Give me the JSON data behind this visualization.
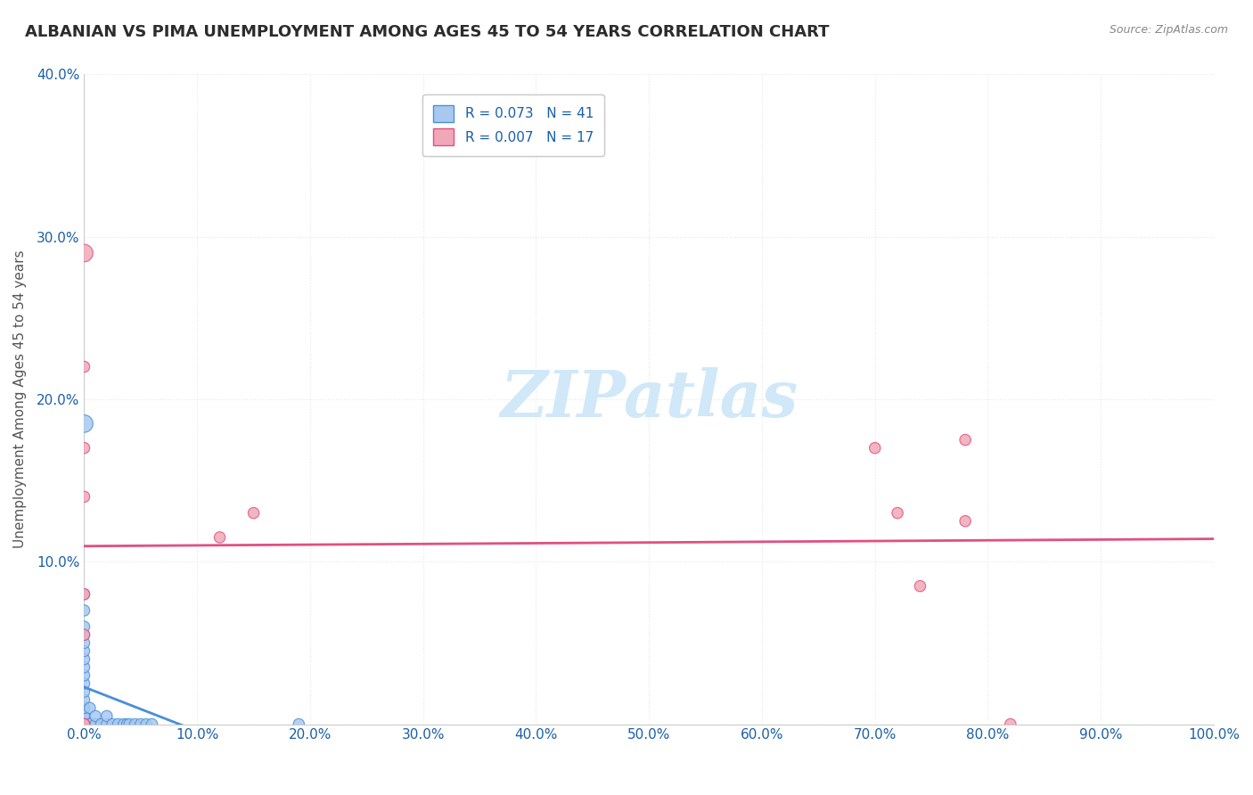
{
  "title": "ALBANIAN VS PIMA UNEMPLOYMENT AMONG AGES 45 TO 54 YEARS CORRELATION CHART",
  "source": "Source: ZipAtlas.com",
  "xlabel": "",
  "ylabel": "Unemployment Among Ages 45 to 54 years",
  "xlim": [
    0,
    1.0
  ],
  "ylim": [
    0,
    0.4
  ],
  "xticks": [
    0.0,
    0.1,
    0.2,
    0.3,
    0.4,
    0.5,
    0.6,
    0.7,
    0.8,
    0.9,
    1.0
  ],
  "xticklabels": [
    "0.0%",
    "10.0%",
    "20.0%",
    "30.0%",
    "40.0%",
    "50.0%",
    "60.0%",
    "70.0%",
    "80.0%",
    "90.0%",
    "100.0%"
  ],
  "yticks": [
    0.0,
    0.1,
    0.2,
    0.3,
    0.4
  ],
  "yticklabels": [
    "",
    "10.0%",
    "20.0%",
    "30.0%",
    "40.0%"
  ],
  "albanian_color": "#a8c8f0",
  "pima_color": "#f0a8b8",
  "albanian_line_color": "#4a90d9",
  "pima_line_color": "#e05080",
  "albanian_R": 0.073,
  "albanian_N": 41,
  "pima_R": 0.007,
  "pima_N": 17,
  "legend_R_color": "#1a5fa8",
  "albanian_x": [
    0.0,
    0.0,
    0.0,
    0.0,
    0.0,
    0.0,
    0.0,
    0.0,
    0.0,
    0.0,
    0.0,
    0.0,
    0.0,
    0.0,
    0.0,
    0.0,
    0.0,
    0.0,
    0.0,
    0.0,
    0.0,
    0.0,
    0.0,
    0.0,
    0.005,
    0.005,
    0.01,
    0.01,
    0.015,
    0.02,
    0.02,
    0.025,
    0.03,
    0.035,
    0.038,
    0.04,
    0.045,
    0.05,
    0.055,
    0.06,
    0.19
  ],
  "albanian_y": [
    0.0,
    0.0,
    0.0,
    0.0,
    0.0,
    0.0,
    0.0,
    0.005,
    0.005,
    0.01,
    0.01,
    0.015,
    0.02,
    0.025,
    0.03,
    0.035,
    0.04,
    0.045,
    0.05,
    0.055,
    0.06,
    0.07,
    0.08,
    0.185,
    0.0,
    0.01,
    0.0,
    0.005,
    0.0,
    0.0,
    0.005,
    0.0,
    0.0,
    0.0,
    0.0,
    0.0,
    0.0,
    0.0,
    0.0,
    0.0,
    0.0
  ],
  "albanian_sizes": [
    80,
    80,
    80,
    80,
    80,
    80,
    80,
    80,
    80,
    80,
    80,
    80,
    80,
    80,
    80,
    80,
    80,
    80,
    80,
    80,
    80,
    80,
    80,
    200,
    80,
    80,
    80,
    80,
    80,
    80,
    80,
    80,
    80,
    80,
    80,
    80,
    80,
    80,
    80,
    80,
    80
  ],
  "pima_x": [
    0.0,
    0.0,
    0.0,
    0.0,
    0.0,
    0.0,
    0.0,
    0.0,
    0.0,
    0.12,
    0.15,
    0.7,
    0.72,
    0.74,
    0.78,
    0.78,
    0.82
  ],
  "pima_y": [
    0.0,
    0.0,
    0.0,
    0.055,
    0.08,
    0.14,
    0.17,
    0.22,
    0.29,
    0.115,
    0.13,
    0.17,
    0.13,
    0.085,
    0.175,
    0.125,
    0.0
  ],
  "pima_sizes": [
    80,
    80,
    80,
    80,
    80,
    80,
    80,
    80,
    200,
    80,
    80,
    80,
    80,
    80,
    80,
    80,
    80
  ],
  "background_color": "#ffffff",
  "grid_color": "#e0e0e0",
  "watermark": "ZIPatlas",
  "watermark_color": "#d0e8f8"
}
